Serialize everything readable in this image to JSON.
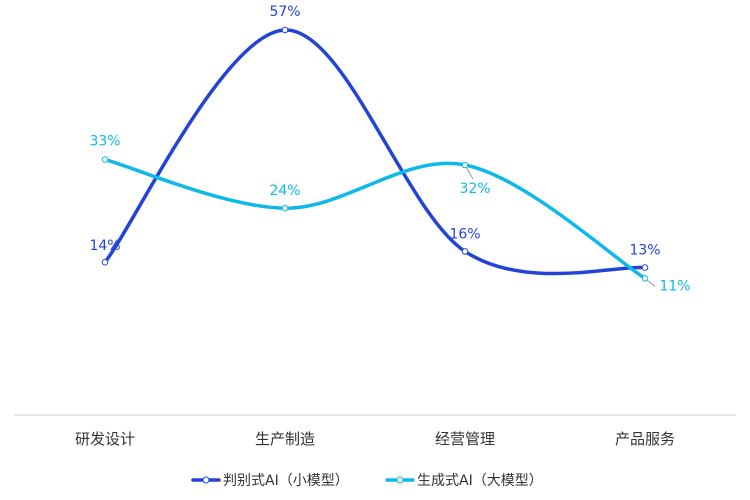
{
  "chart_data": {
    "type": "line",
    "title": "",
    "xlabel": "",
    "ylabel": "",
    "ylim": [
      0,
      60
    ],
    "grid": false,
    "legend_position": "bottom",
    "categories": [
      "研发设计",
      "生产制造",
      "经营管理",
      "产品服务"
    ],
    "series": [
      {
        "name": "判别式AI（小模型）",
        "values": [
          14,
          57,
          16,
          13
        ],
        "labels": [
          "14%",
          "57%",
          "16%",
          "13%"
        ],
        "color": "#2244d6"
      },
      {
        "name": "生成式AI（大模型）",
        "values": [
          33,
          24,
          32,
          11
        ],
        "labels": [
          "33%",
          "24%",
          "32%",
          "11%"
        ],
        "color": "#0fb8ea"
      }
    ]
  }
}
